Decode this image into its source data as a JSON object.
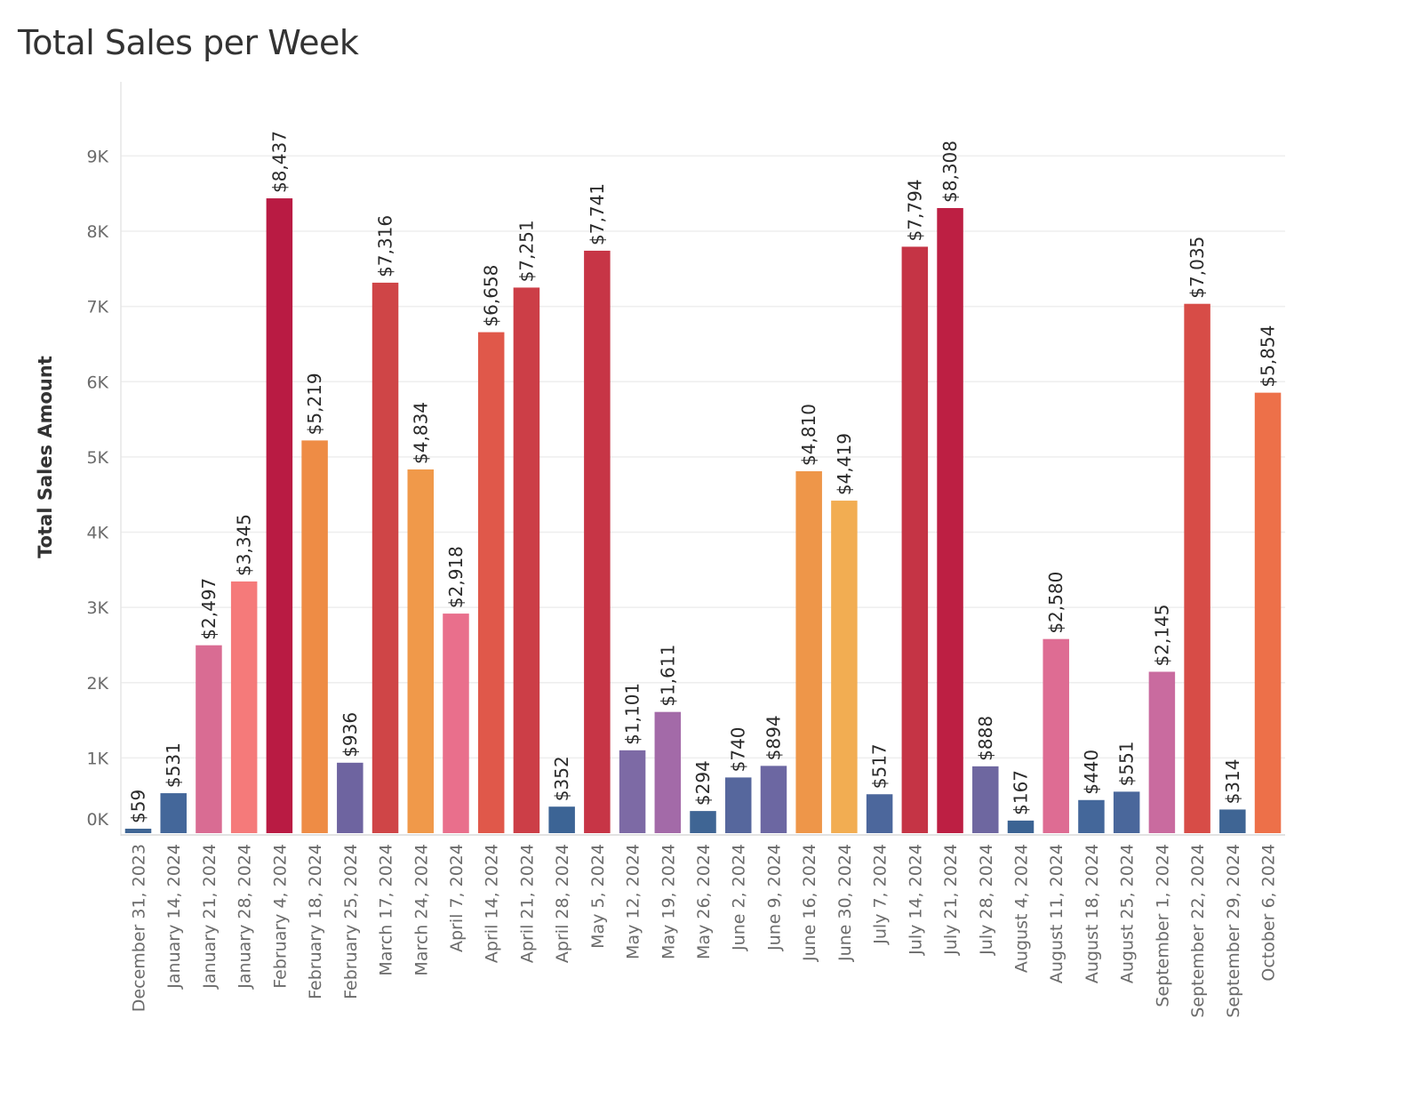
{
  "chart_data": {
    "type": "bar",
    "title": "Total Sales per Week",
    "xlabel": "",
    "ylabel": "Total Sales Amount",
    "ylim": [
      0,
      9000
    ],
    "y_ticks": [
      {
        "value": 0,
        "label": "0K"
      },
      {
        "value": 1000,
        "label": "1K"
      },
      {
        "value": 2000,
        "label": "2K"
      },
      {
        "value": 3000,
        "label": "3K"
      },
      {
        "value": 4000,
        "label": "4K"
      },
      {
        "value": 5000,
        "label": "5K"
      },
      {
        "value": 6000,
        "label": "6K"
      },
      {
        "value": 7000,
        "label": "7K"
      },
      {
        "value": 8000,
        "label": "8K"
      },
      {
        "value": 9000,
        "label": "9K"
      }
    ],
    "grid": true,
    "legend": "none",
    "categories": [
      "December 31, 2023",
      "January 14, 2024",
      "January 21, 2024",
      "January 28, 2024",
      "February 4, 2024",
      "February 18, 2024",
      "February 25, 2024",
      "March 17, 2024",
      "March 24, 2024",
      "April 7, 2024",
      "April 14, 2024",
      "April 21, 2024",
      "April 28, 2024",
      "May 5, 2024",
      "May 12, 2024",
      "May 19, 2024",
      "May 26, 2024",
      "June 2, 2024",
      "June 9, 2024",
      "June 16, 2024",
      "June 30, 2024",
      "July 7, 2024",
      "July 14, 2024",
      "July 21, 2024",
      "July 28, 2024",
      "August 4, 2024",
      "August 11, 2024",
      "August 18, 2024",
      "August 25, 2024",
      "September 1, 2024",
      "September 22, 2024",
      "September 29, 2024",
      "October 6, 2024"
    ],
    "values": [
      59,
      531,
      2497,
      3345,
      8437,
      5219,
      936,
      7316,
      4834,
      2918,
      6658,
      7251,
      352,
      7741,
      1101,
      1611,
      294,
      740,
      894,
      4810,
      4419,
      517,
      7794,
      8308,
      888,
      167,
      2580,
      440,
      551,
      2145,
      7035,
      314,
      5854
    ],
    "data_labels": [
      "$59",
      "$531",
      "$2,497",
      "$3,345",
      "$8,437",
      "$5,219",
      "$936",
      "$7,316",
      "$4,834",
      "$2,918",
      "$6,658",
      "$7,251",
      "$352",
      "$7,741",
      "$1,101",
      "$1,611",
      "$294",
      "$740",
      "$894",
      "$4,810",
      "$4,419",
      "$517",
      "$7,794",
      "$8,308",
      "$888",
      "$167",
      "$2,580",
      "$440",
      "$551",
      "$2,145",
      "$7,035",
      "$314",
      "$5,854"
    ],
    "colors": [
      "#3f6594",
      "#44679a",
      "#d96c93",
      "#f57a7a",
      "#b91b43",
      "#ee8c45",
      "#6e64a0",
      "#cf4547",
      "#f0994a",
      "#e96f8c",
      "#e0584a",
      "#cc3e47",
      "#3c6495",
      "#c73546",
      "#7d6aa5",
      "#a36aa8",
      "#3f6594",
      "#56679d",
      "#6c67a2",
      "#ee9649",
      "#f2ad52",
      "#4c679c",
      "#c53445",
      "#bd1f43",
      "#6e67a0",
      "#3b6393",
      "#de6c93",
      "#44679a",
      "#4a679b",
      "#c96b9f",
      "#d74c47",
      "#3f6594",
      "#ed7049"
    ]
  }
}
